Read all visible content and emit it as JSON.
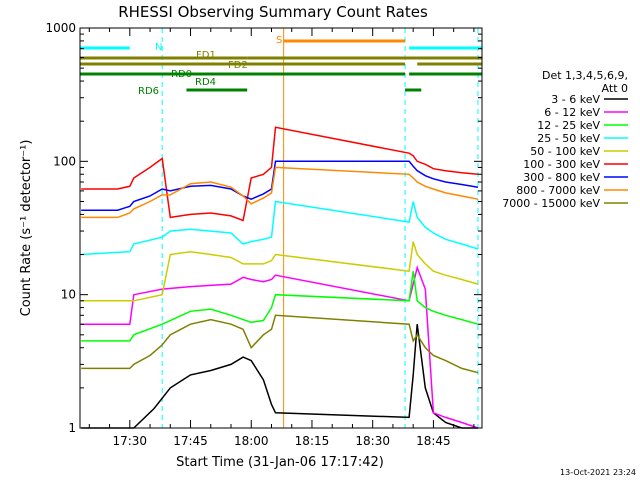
{
  "title": "RHESSI Observing Summary Count Rates",
  "timestamp": "13-Oct-2021 23:24",
  "chart_data": {
    "type": "line",
    "title": "RHESSI Observing Summary Count Rates",
    "xlabel": "Start Time (31-Jan-06 17:17:42)",
    "ylabel": "Count Rate (s⁻¹ detector⁻¹)",
    "y_scale": "log",
    "ylim": [
      1,
      1000
    ],
    "yticks": [
      {
        "value": 1,
        "label": "1"
      },
      {
        "value": 10,
        "label": "10"
      },
      {
        "value": 100,
        "label": "100"
      },
      {
        "value": 1000,
        "label": "1000"
      }
    ],
    "xlim": [
      "17:17:42",
      "18:57:00"
    ],
    "xticks": [
      "17:30",
      "17:45",
      "18:00",
      "18:15",
      "18:30",
      "18:45"
    ],
    "grid": false,
    "legend": {
      "header": [
        "Det 1,3,4,5,6,9,",
        "Att 0"
      ],
      "placement": "right"
    },
    "series": [
      {
        "name": "3 - 6 keV",
        "color": "#000000",
        "x": [
          "17:18",
          "17:27",
          "17:31",
          "17:36",
          "17:40",
          "17:45",
          "17:50",
          "17:55",
          "17:58",
          "18:00",
          "18:03",
          "18:05",
          "18:06",
          "18:39",
          "18:40",
          "18:41",
          "18:43",
          "18:45",
          "18:48",
          "18:52",
          "18:56"
        ],
        "values": [
          1,
          1,
          1,
          1.4,
          2,
          2.5,
          2.7,
          3.0,
          3.4,
          3.2,
          2.3,
          1.5,
          1.3,
          1.2,
          2.5,
          6,
          2,
          1.3,
          1.1,
          1.0,
          1.0
        ]
      },
      {
        "name": "6 - 12 keV",
        "color": "#ff00ff",
        "x": [
          "17:18",
          "17:30",
          "17:31",
          "17:38",
          "17:45",
          "17:55",
          "17:58",
          "18:00",
          "18:03",
          "18:05",
          "18:06",
          "18:39",
          "18:40",
          "18:41",
          "18:43",
          "18:45",
          "18:48",
          "18:52",
          "18:56"
        ],
        "values": [
          6,
          6,
          10,
          11,
          11.5,
          12,
          13.5,
          13,
          12.5,
          13,
          14,
          9,
          12,
          16,
          11,
          1.3,
          1.2,
          1.1,
          1.0
        ]
      },
      {
        "name": "12 - 25 keV",
        "color": "#00ff00",
        "x": [
          "17:18",
          "17:30",
          "17:31",
          "17:38",
          "17:45",
          "17:50",
          "17:55",
          "17:58",
          "18:00",
          "18:03",
          "18:05",
          "18:06",
          "18:39",
          "18:40",
          "18:41",
          "18:43",
          "18:45",
          "18:48",
          "18:52",
          "18:56"
        ],
        "values": [
          4.5,
          4.5,
          5.0,
          6,
          7.5,
          7.8,
          7,
          6.5,
          6.2,
          6.4,
          8,
          10,
          9,
          15,
          9,
          8,
          7.5,
          7,
          6.5,
          6
        ]
      },
      {
        "name": "25 - 50 keV",
        "color": "#00ffff",
        "x": [
          "17:18",
          "17:30",
          "17:31",
          "17:38",
          "17:40",
          "17:45",
          "17:50",
          "17:55",
          "17:58",
          "18:00",
          "18:03",
          "18:05",
          "18:06",
          "18:39",
          "18:40",
          "18:41",
          "18:43",
          "18:45",
          "18:48",
          "18:52",
          "18:56"
        ],
        "values": [
          20,
          21,
          24,
          27,
          30,
          31,
          30,
          29,
          24,
          25,
          26,
          27,
          50,
          35,
          50,
          38,
          32,
          29,
          26,
          24,
          22
        ]
      },
      {
        "name": "50 - 100 keV",
        "color": "#cccc00",
        "x": [
          "17:18",
          "17:30",
          "17:31",
          "17:38",
          "17:40",
          "17:45",
          "17:50",
          "17:55",
          "17:58",
          "18:00",
          "18:03",
          "18:05",
          "18:06",
          "18:39",
          "18:40",
          "18:41",
          "18:43",
          "18:45",
          "18:48",
          "18:52",
          "18:56"
        ],
        "values": [
          9,
          9,
          9,
          10,
          20,
          21,
          20,
          19,
          17,
          17,
          17,
          18,
          20,
          15,
          25,
          20,
          17,
          15,
          14,
          13,
          12
        ]
      },
      {
        "name": "100 - 300 keV",
        "color": "#ff0000",
        "x": [
          "17:18",
          "17:27",
          "17:30",
          "17:31",
          "17:35",
          "17:38",
          "17:40",
          "17:45",
          "17:50",
          "17:55",
          "17:58",
          "18:00",
          "18:03",
          "18:05",
          "18:06",
          "18:39",
          "18:40",
          "18:41",
          "18:43",
          "18:45",
          "18:48",
          "18:52",
          "18:56"
        ],
        "values": [
          62,
          62,
          65,
          75,
          90,
          105,
          38,
          40,
          41,
          39,
          36,
          75,
          80,
          90,
          180,
          115,
          110,
          100,
          95,
          88,
          85,
          82,
          80
        ]
      },
      {
        "name": "300 - 800 keV",
        "color": "#0000ff",
        "x": [
          "17:18",
          "17:27",
          "17:30",
          "17:31",
          "17:35",
          "17:38",
          "17:40",
          "17:45",
          "17:50",
          "17:55",
          "17:58",
          "18:00",
          "18:03",
          "18:05",
          "18:06",
          "18:39",
          "18:40",
          "18:41",
          "18:43",
          "18:45",
          "18:48",
          "18:52",
          "18:56"
        ],
        "values": [
          43,
          43,
          46,
          50,
          55,
          62,
          60,
          65,
          66,
          62,
          55,
          52,
          57,
          62,
          100,
          100,
          92,
          85,
          78,
          74,
          70,
          67,
          64
        ]
      },
      {
        "name": "800 - 7000 keV",
        "color": "#ff8800",
        "x": [
          "17:18",
          "17:27",
          "17:30",
          "17:31",
          "17:35",
          "17:38",
          "17:40",
          "17:45",
          "17:50",
          "17:55",
          "17:58",
          "18:00",
          "18:03",
          "18:05",
          "18:06",
          "18:39",
          "18:40",
          "18:41",
          "18:43",
          "18:45",
          "18:48",
          "18:52",
          "18:56"
        ],
        "values": [
          38,
          38,
          41,
          44,
          50,
          56,
          56,
          68,
          70,
          64,
          55,
          48,
          53,
          58,
          90,
          80,
          75,
          70,
          65,
          62,
          58,
          55,
          52
        ]
      },
      {
        "name": "7000 - 15000 keV",
        "color": "#808000",
        "x": [
          "17:18",
          "17:27",
          "17:30",
          "17:31",
          "17:35",
          "17:38",
          "17:40",
          "17:45",
          "17:50",
          "17:55",
          "17:58",
          "18:00",
          "18:03",
          "18:05",
          "18:06",
          "18:39",
          "18:40",
          "18:41",
          "18:43",
          "18:45",
          "18:48",
          "18:52",
          "18:56"
        ],
        "values": [
          2.8,
          2.8,
          2.8,
          3.0,
          3.5,
          4.2,
          5,
          6,
          6.5,
          6,
          5.5,
          4,
          5,
          5.5,
          7,
          6,
          4.5,
          5,
          4,
          3.5,
          3.2,
          2.8,
          2.6
        ]
      }
    ],
    "flag_bars": [
      {
        "label": "N",
        "color": "#00ffff",
        "segments": [
          [
            "17:17:42",
            "17:30"
          ],
          [
            "18:39",
            "18:57"
          ]
        ]
      },
      {
        "label": "S",
        "color": "#ff8800",
        "segments": [
          [
            "18:08",
            "18:38"
          ]
        ]
      },
      {
        "label": "FD1",
        "color": "#808000",
        "segments": [
          [
            "17:17:42",
            "17:59"
          ],
          [
            "17:59",
            "18:57"
          ]
        ]
      },
      {
        "label": "FD2",
        "color": "#808000",
        "segments": [
          [
            "17:17:42",
            "18:38"
          ],
          [
            "18:41",
            "18:57"
          ]
        ]
      },
      {
        "label": "RD0",
        "color": "#008000",
        "segments": [
          [
            "17:17:42",
            "18:38"
          ],
          [
            "18:39",
            "18:57"
          ]
        ]
      },
      {
        "label": "RD4",
        "color": "#008000",
        "segments": [
          [
            "18:38",
            "18:42"
          ]
        ]
      },
      {
        "label": "RD6",
        "color": "#008000",
        "segments": [
          [
            "17:44",
            "17:59"
          ]
        ]
      }
    ],
    "markers": [
      {
        "time": "17:17:42",
        "color": "#00ffff"
      },
      {
        "time": "17:38",
        "color": "#00ffff"
      },
      {
        "time": "18:08",
        "color": "#ff8800"
      },
      {
        "time": "18:38",
        "color": "#00ffff"
      },
      {
        "time": "18:56",
        "color": "#00ffff"
      }
    ]
  }
}
